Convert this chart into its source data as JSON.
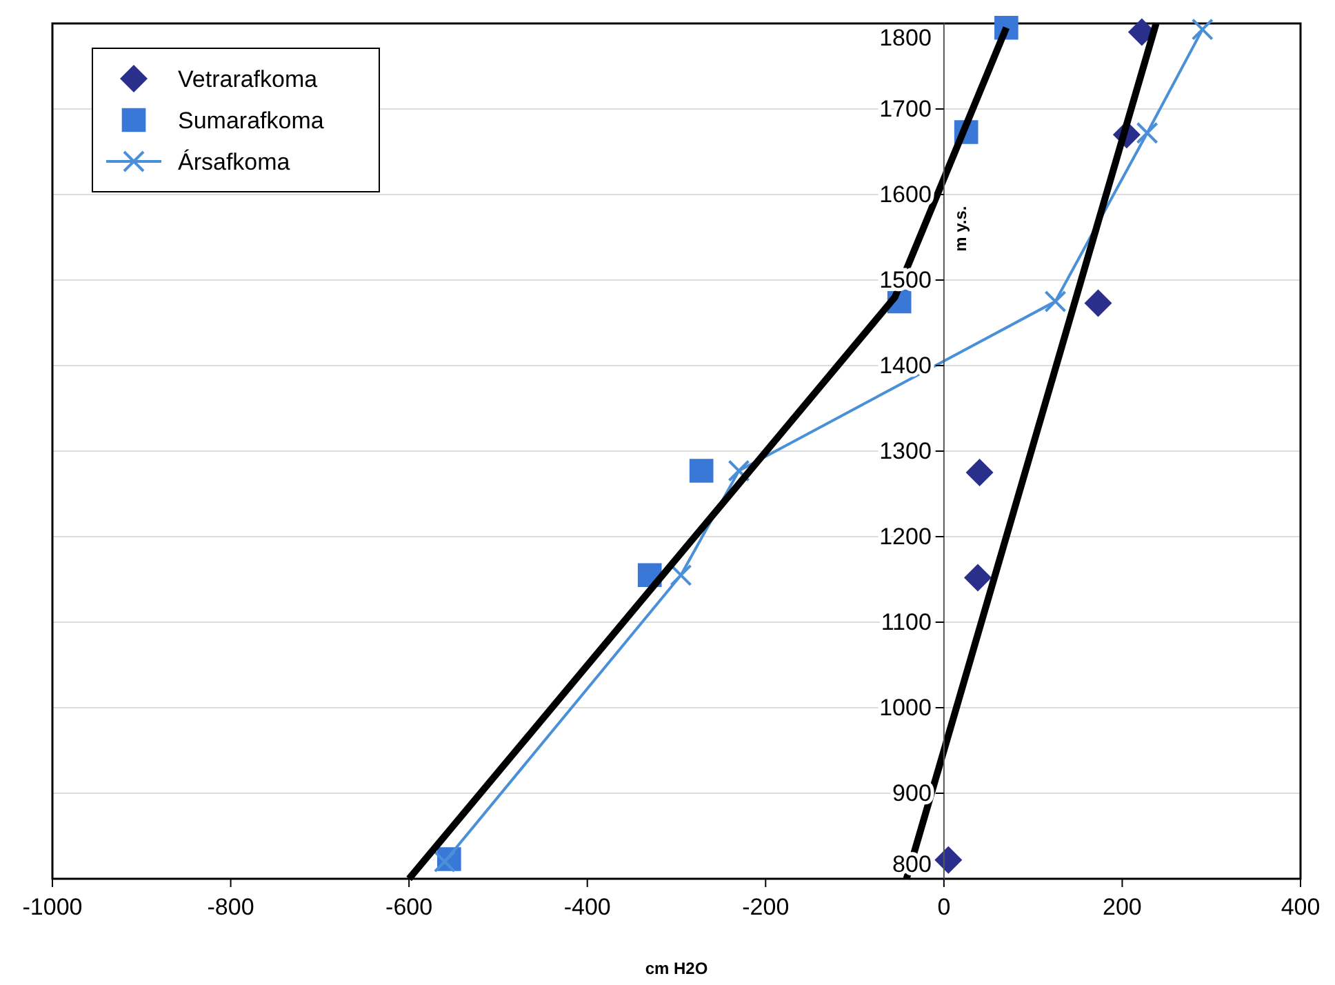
{
  "chart_data": {
    "type": "scatter",
    "xlabel": "cm H2O",
    "ylabel": "m y.s.",
    "xlim": [
      -1000,
      400
    ],
    "xticks": [
      -1000,
      -800,
      -600,
      -400,
      -200,
      0,
      200,
      400
    ],
    "ylim": [
      800,
      1800
    ],
    "yticks": [
      800,
      900,
      1000,
      1100,
      1200,
      1300,
      1400,
      1500,
      1600,
      1700,
      1800
    ],
    "grid": "y",
    "legend": "top left",
    "series": [
      {
        "name": "Vetrarafkoma",
        "marker": "diamond",
        "color": "#2b2f8c",
        "x": [
          222,
          205,
          173,
          40,
          38,
          5
        ],
        "values": [
          1790,
          1670,
          1473,
          1275,
          1152,
          822
        ]
      },
      {
        "name": "Sumarafkoma",
        "marker": "square",
        "color": "#3a78d8",
        "x": [
          70,
          25,
          -50,
          -272,
          -330,
          -555
        ],
        "values": [
          1795,
          1673,
          1475,
          1277,
          1155,
          823
        ]
      },
      {
        "name": "Ársafkoma",
        "type": "line",
        "marker": "cross",
        "color": "#4a90d9",
        "x": [
          290,
          228,
          125,
          -230,
          -295,
          -560
        ],
        "values": [
          1793,
          1672,
          1475,
          1277,
          1155,
          820
        ]
      },
      {
        "type": "line",
        "marker": "none",
        "color": "#000000",
        "x": [
          -600,
          -55,
          70
        ],
        "values": [
          800,
          1480,
          1795
        ]
      },
      {
        "type": "line",
        "marker": "none",
        "color": "#000000",
        "x": [
          -42,
          238
        ],
        "values": [
          800,
          1800
        ]
      }
    ]
  }
}
